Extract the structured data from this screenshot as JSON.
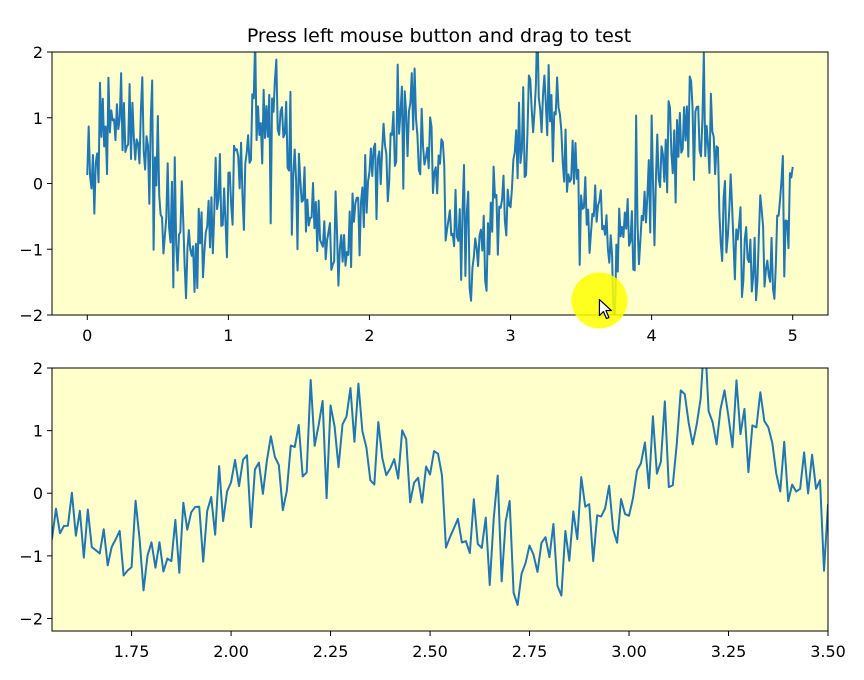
{
  "title": "Press left mouse button and drag to test",
  "colors": {
    "background": "#ffffff",
    "axes_face": "#ffffcc",
    "line": "#1f77b4",
    "cursor_highlight": "#ffff00"
  },
  "cursor": {
    "icon": "arrow-cursor-icon",
    "data_x": 3.63,
    "data_y": -1.78
  },
  "chart_data": [
    {
      "type": "line",
      "xlim": [
        -0.25,
        5.25
      ],
      "ylim": [
        -2,
        2
      ],
      "xticks": [
        {
          "value": 0,
          "label": "0"
        },
        {
          "value": 1,
          "label": "1"
        },
        {
          "value": 2,
          "label": "2"
        },
        {
          "value": 3,
          "label": "3"
        },
        {
          "value": 4,
          "label": "4"
        },
        {
          "value": 5,
          "label": "5"
        }
      ],
      "yticks": [
        {
          "value": -2,
          "label": "−2"
        },
        {
          "value": -1,
          "label": "−1"
        },
        {
          "value": 0,
          "label": "0"
        },
        {
          "value": 1,
          "label": "1"
        },
        {
          "value": 2,
          "label": "2"
        }
      ],
      "signal": {
        "x_start": 0,
        "x_end": 5,
        "step": 0.01,
        "form": "sin(2*pi*x)",
        "noise_amplitude": 0.5
      },
      "grid": false
    },
    {
      "type": "line",
      "xlim": [
        1.55,
        3.5
      ],
      "ylim": [
        -2.2,
        2.0
      ],
      "xticks": [
        {
          "value": 1.75,
          "label": "1.75"
        },
        {
          "value": 2.0,
          "label": "2.00"
        },
        {
          "value": 2.25,
          "label": "2.25"
        },
        {
          "value": 2.5,
          "label": "2.50"
        },
        {
          "value": 2.75,
          "label": "2.75"
        },
        {
          "value": 3.0,
          "label": "3.00"
        },
        {
          "value": 3.25,
          "label": "3.25"
        },
        {
          "value": 3.5,
          "label": "3.50"
        }
      ],
      "yticks": [
        {
          "value": -2,
          "label": "−2"
        },
        {
          "value": -1,
          "label": "−1"
        },
        {
          "value": 0,
          "label": "0"
        },
        {
          "value": 1,
          "label": "1"
        },
        {
          "value": 2,
          "label": "2"
        }
      ],
      "signal": {
        "x_start": 0,
        "x_end": 5,
        "step": 0.01,
        "form": "sin(2*pi*x)",
        "noise_amplitude": 0.5
      },
      "grid": false
    }
  ]
}
